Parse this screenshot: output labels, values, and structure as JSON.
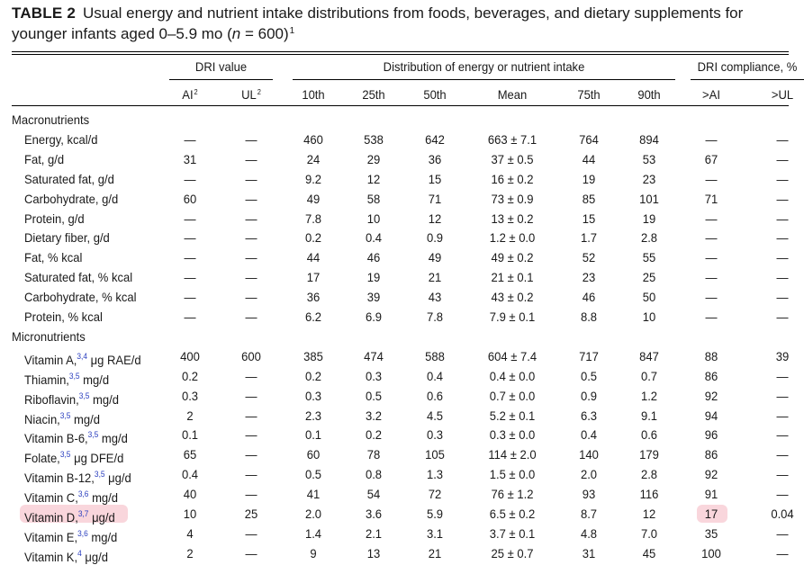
{
  "caption": {
    "label": "TABLE 2",
    "text_part1": "Usual energy and nutrient intake distributions from foods, beverages, and dietary supplements for younger infants aged 0–5.9 mo (",
    "n_italic": "n",
    "text_part2": " = 600)",
    "footnote": "1"
  },
  "group_headers": {
    "dri_value": "DRI value",
    "distribution": "Distribution of energy or nutrient intake",
    "compliance": "DRI compliance, %"
  },
  "columns": [
    {
      "label": "AI",
      "sup": "2"
    },
    {
      "label": "UL",
      "sup": "2"
    },
    {
      "label": "10th",
      "sup": ""
    },
    {
      "label": "25th",
      "sup": ""
    },
    {
      "label": "50th",
      "sup": ""
    },
    {
      "label": "Mean",
      "sup": ""
    },
    {
      "label": "75th",
      "sup": ""
    },
    {
      "label": "90th",
      "sup": ""
    },
    {
      "label": ">AI",
      "sup": ""
    },
    {
      "label": ">UL",
      "sup": ""
    }
  ],
  "sections": [
    {
      "title": "Macronutrients",
      "rows": [
        {
          "label": "Energy, kcal/d",
          "sup": "",
          "unit": "",
          "values": [
            "—",
            "—",
            "460",
            "538",
            "642",
            "663 ± 7.1",
            "764",
            "894",
            "—",
            "—"
          ]
        },
        {
          "label": "Fat, g/d",
          "sup": "",
          "unit": "",
          "values": [
            "31",
            "—",
            "24",
            "29",
            "36",
            "37 ± 0.5",
            "44",
            "53",
            "67",
            "—"
          ]
        },
        {
          "label": "Saturated fat, g/d",
          "sup": "",
          "unit": "",
          "values": [
            "—",
            "—",
            "9.2",
            "12",
            "15",
            "16 ± 0.2",
            "19",
            "23",
            "—",
            "—"
          ]
        },
        {
          "label": "Carbohydrate, g/d",
          "sup": "",
          "unit": "",
          "values": [
            "60",
            "—",
            "49",
            "58",
            "71",
            "73 ± 0.9",
            "85",
            "101",
            "71",
            "—"
          ]
        },
        {
          "label": "Protein, g/d",
          "sup": "",
          "unit": "",
          "values": [
            "—",
            "—",
            "7.8",
            "10",
            "12",
            "13 ± 0.2",
            "15",
            "19",
            "—",
            "—"
          ]
        },
        {
          "label": "Dietary fiber, g/d",
          "sup": "",
          "unit": "",
          "values": [
            "—",
            "—",
            "0.2",
            "0.4",
            "0.9",
            "1.2 ± 0.0",
            "1.7",
            "2.8",
            "—",
            "—"
          ]
        },
        {
          "label": "Fat, % kcal",
          "sup": "",
          "unit": "",
          "values": [
            "—",
            "—",
            "44",
            "46",
            "49",
            "49 ± 0.2",
            "52",
            "55",
            "—",
            "—"
          ]
        },
        {
          "label": "Saturated fat, % kcal",
          "sup": "",
          "unit": "",
          "values": [
            "—",
            "—",
            "17",
            "19",
            "21",
            "21 ± 0.1",
            "23",
            "25",
            "—",
            "—"
          ]
        },
        {
          "label": "Carbohydrate, % kcal",
          "sup": "",
          "unit": "",
          "values": [
            "—",
            "—",
            "36",
            "39",
            "43",
            "43 ± 0.2",
            "46",
            "50",
            "—",
            "—"
          ]
        },
        {
          "label": "Protein, % kcal",
          "sup": "",
          "unit": "",
          "values": [
            "—",
            "—",
            "6.2",
            "6.9",
            "7.8",
            "7.9 ± 0.1",
            "8.8",
            "10",
            "—",
            "—"
          ]
        }
      ]
    },
    {
      "title": "Micronutrients",
      "rows": [
        {
          "label": "Vitamin A,",
          "sup": "3,4",
          "unit": " μg RAE/d",
          "values": [
            "400",
            "600",
            "385",
            "474",
            "588",
            "604 ± 7.4",
            "717",
            "847",
            "88",
            "39"
          ]
        },
        {
          "label": "Thiamin,",
          "sup": "3,5",
          "unit": " mg/d",
          "values": [
            "0.2",
            "—",
            "0.2",
            "0.3",
            "0.4",
            "0.4 ± 0.0",
            "0.5",
            "0.7",
            "86",
            "—"
          ]
        },
        {
          "label": "Riboflavin,",
          "sup": "3,5",
          "unit": " mg/d",
          "values": [
            "0.3",
            "—",
            "0.3",
            "0.5",
            "0.6",
            "0.7 ± 0.0",
            "0.9",
            "1.2",
            "92",
            "—"
          ]
        },
        {
          "label": "Niacin,",
          "sup": "3,5",
          "unit": " mg/d",
          "values": [
            "2",
            "—",
            "2.3",
            "3.2",
            "4.5",
            "5.2 ± 0.1",
            "6.3",
            "9.1",
            "94",
            "—"
          ]
        },
        {
          "label": "Vitamin B-6,",
          "sup": "3,5",
          "unit": " mg/d",
          "values": [
            "0.1",
            "—",
            "0.1",
            "0.2",
            "0.3",
            "0.3 ± 0.0",
            "0.4",
            "0.6",
            "96",
            "—"
          ]
        },
        {
          "label": "Folate,",
          "sup": "3,5",
          "unit": " μg DFE/d",
          "values": [
            "65",
            "—",
            "60",
            "78",
            "105",
            "114 ± 2.0",
            "140",
            "179",
            "86",
            "—"
          ]
        },
        {
          "label": "Vitamin B-12,",
          "sup": "3,5",
          "unit": " μg/d",
          "values": [
            "0.4",
            "—",
            "0.5",
            "0.8",
            "1.3",
            "1.5 ± 0.0",
            "2.0",
            "2.8",
            "92",
            "—"
          ]
        },
        {
          "label": "Vitamin C,",
          "sup": "3,6",
          "unit": " mg/d",
          "values": [
            "40",
            "—",
            "41",
            "54",
            "72",
            "76 ± 1.2",
            "93",
            "116",
            "91",
            "—"
          ]
        },
        {
          "label": "Vitamin D,",
          "sup": "3,7",
          "unit": " μg/d",
          "values": [
            "10",
            "25",
            "2.0",
            "3.6",
            "5.9",
            "6.5 ± 0.2",
            "8.7",
            "12",
            "17",
            "0.04"
          ],
          "highlight": true
        },
        {
          "label": "Vitamin E,",
          "sup": "3,6",
          "unit": " mg/d",
          "values": [
            "4",
            "—",
            "1.4",
            "2.1",
            "3.1",
            "3.7 ± 0.1",
            "4.8",
            "7.0",
            "35",
            "—"
          ]
        },
        {
          "label": "Vitamin K,",
          "sup": "4",
          "unit": " μg/d",
          "values": [
            "2",
            "—",
            "9",
            "13",
            "21",
            "25 ± 0.7",
            "31",
            "45",
            "100",
            "—"
          ]
        }
      ]
    }
  ],
  "colors": {
    "highlight": "#f9d6dc",
    "footnote_link": "#2b3fbf"
  }
}
